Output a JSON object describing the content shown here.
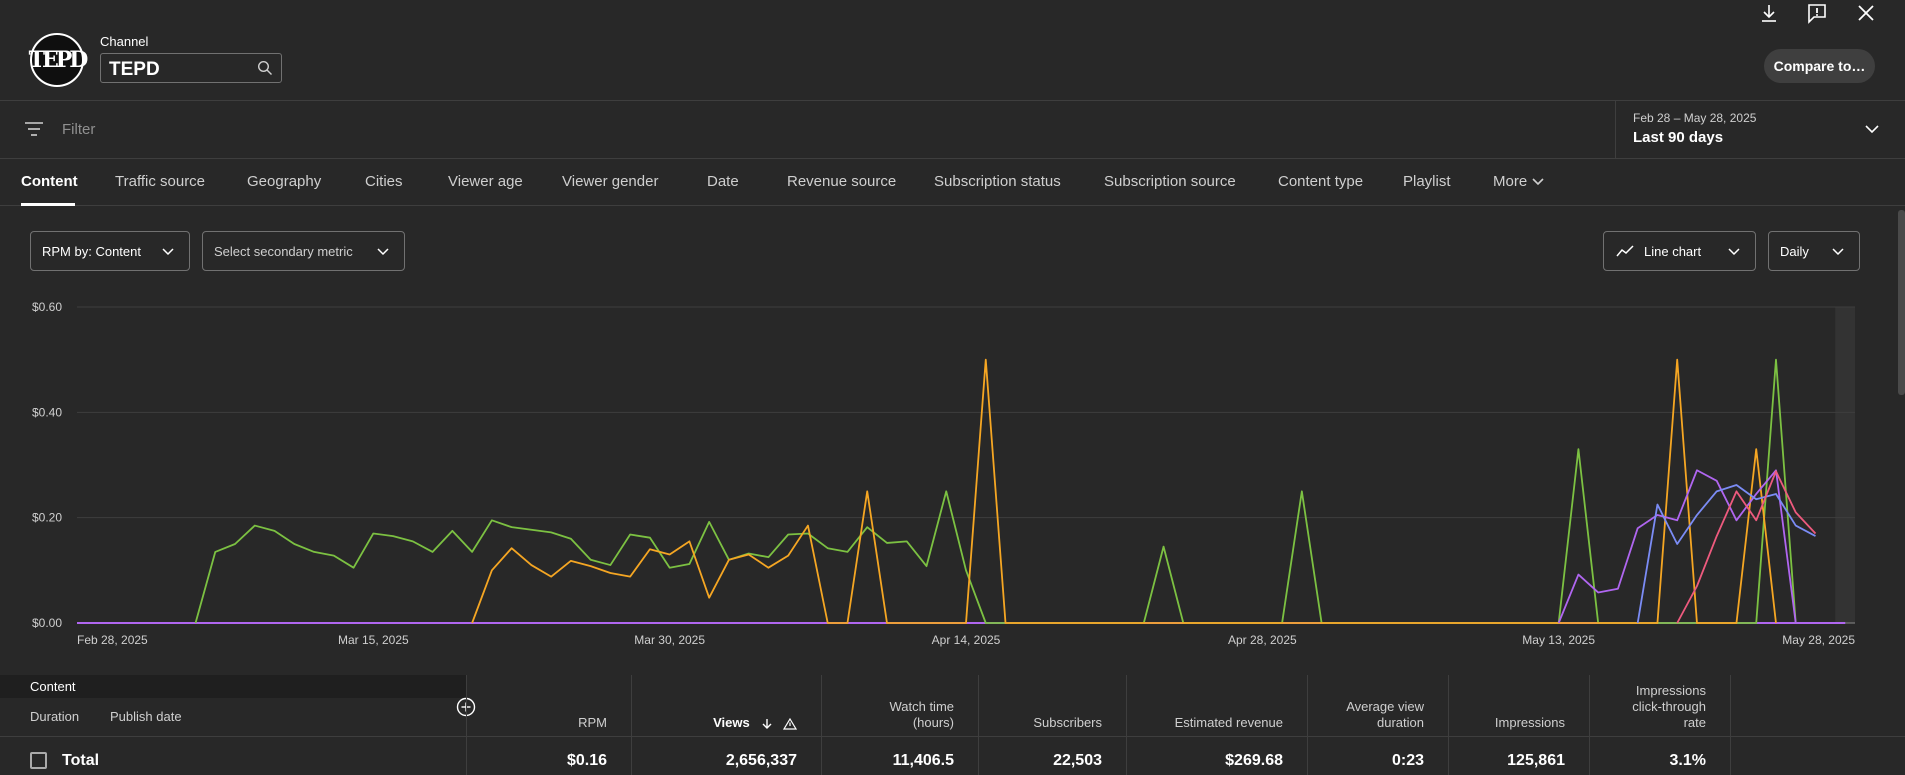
{
  "header": {
    "channel_label": "Channel",
    "channel_name": "TEPD",
    "logo_text": "TEPD",
    "compare_label": "Compare to…",
    "icons": [
      "download-icon",
      "feedback-icon",
      "close-icon",
      "search-icon"
    ]
  },
  "filter": {
    "placeholder": "Filter",
    "date_range": "Feb 28 – May 28, 2025",
    "date_preset": "Last 90 days"
  },
  "tabs": [
    {
      "label": "Content"
    },
    {
      "label": "Traffic source"
    },
    {
      "label": "Geography"
    },
    {
      "label": "Cities"
    },
    {
      "label": "Viewer age"
    },
    {
      "label": "Viewer gender"
    },
    {
      "label": "Date"
    },
    {
      "label": "Revenue source"
    },
    {
      "label": "Subscription status"
    },
    {
      "label": "Subscription source"
    },
    {
      "label": "Content type"
    },
    {
      "label": "Playlist"
    },
    {
      "label": "More"
    }
  ],
  "controls": {
    "primary_metric": "RPM by: Content",
    "secondary_metric": "Select secondary metric",
    "chart_type": "Line chart",
    "granularity": "Daily"
  },
  "chart_data": {
    "type": "line",
    "x_ticks": [
      "Feb 28, 2025",
      "Mar 15, 2025",
      "Mar 30, 2025",
      "Apr 14, 2025",
      "Apr 28, 2025",
      "May 13, 2025",
      "May 28, 2025"
    ],
    "y_ticks": [
      "$0.00",
      "$0.20",
      "$0.40",
      "$0.60"
    ],
    "ylim": [
      0,
      0.6
    ],
    "days": 90,
    "grid": true,
    "colors": {
      "green": "#7cc142",
      "orange": "#f5a623",
      "purple": "#b066f0",
      "blue": "#7b8cf5",
      "pink": "#ee5a7e"
    },
    "series": [
      {
        "color": "#7cc142",
        "points": [
          [
            6,
            0
          ],
          [
            7,
            0.135
          ],
          [
            8,
            0.15
          ],
          [
            9,
            0.185
          ],
          [
            10,
            0.175
          ],
          [
            11,
            0.15
          ],
          [
            12,
            0.135
          ],
          [
            13,
            0.128
          ],
          [
            14,
            0.105
          ],
          [
            15,
            0.17
          ],
          [
            16,
            0.165
          ],
          [
            17,
            0.155
          ],
          [
            18,
            0.135
          ],
          [
            19,
            0.175
          ],
          [
            20,
            0.135
          ],
          [
            21,
            0.195
          ],
          [
            22,
            0.182
          ],
          [
            23,
            0.177
          ],
          [
            24,
            0.172
          ],
          [
            25,
            0.16
          ],
          [
            26,
            0.12
          ],
          [
            27,
            0.11
          ],
          [
            28,
            0.168
          ],
          [
            29,
            0.162
          ],
          [
            30,
            0.105
          ],
          [
            31,
            0.112
          ],
          [
            32,
            0.192
          ],
          [
            33,
            0.12
          ],
          [
            34,
            0.132
          ],
          [
            35,
            0.125
          ],
          [
            36,
            0.168
          ],
          [
            37,
            0.17
          ],
          [
            38,
            0.142
          ],
          [
            39,
            0.135
          ],
          [
            40,
            0.182
          ],
          [
            41,
            0.152
          ],
          [
            42,
            0.155
          ],
          [
            43,
            0.108
          ],
          [
            44,
            0.25
          ],
          [
            45,
            0.1
          ],
          [
            46,
            0
          ],
          [
            54,
            0
          ],
          [
            55,
            0.145
          ],
          [
            56,
            0
          ],
          [
            61,
            0
          ],
          [
            62,
            0.25
          ],
          [
            63,
            0
          ],
          [
            75,
            0
          ],
          [
            76,
            0.33
          ],
          [
            77,
            0
          ],
          [
            85,
            0
          ],
          [
            86,
            0.5
          ],
          [
            87,
            0
          ]
        ]
      },
      {
        "color": "#f5a623",
        "points": [
          [
            20,
            0
          ],
          [
            21,
            0.1
          ],
          [
            22,
            0.142
          ],
          [
            23,
            0.11
          ],
          [
            24,
            0.088
          ],
          [
            25,
            0.118
          ],
          [
            26,
            0.108
          ],
          [
            27,
            0.095
          ],
          [
            28,
            0.088
          ],
          [
            29,
            0.14
          ],
          [
            30,
            0.13
          ],
          [
            31,
            0.155
          ],
          [
            32,
            0.048
          ],
          [
            33,
            0.12
          ],
          [
            34,
            0.13
          ],
          [
            35,
            0.105
          ],
          [
            36,
            0.128
          ],
          [
            37,
            0.185
          ],
          [
            38,
            0
          ],
          [
            39,
            0
          ],
          [
            40,
            0.25
          ],
          [
            41,
            0
          ],
          [
            45,
            0
          ],
          [
            46,
            0.5
          ],
          [
            47,
            0
          ],
          [
            80,
            0
          ],
          [
            81,
            0.5
          ],
          [
            82,
            0
          ],
          [
            84,
            0
          ],
          [
            85,
            0.33
          ],
          [
            86,
            0
          ]
        ]
      },
      {
        "color": "#b066f0",
        "points": [
          [
            75,
            0
          ],
          [
            76,
            0.092
          ],
          [
            77,
            0.058
          ],
          [
            78,
            0.065
          ],
          [
            79,
            0.18
          ],
          [
            80,
            0.205
          ],
          [
            81,
            0.195
          ],
          [
            82,
            0.29
          ],
          [
            83,
            0.27
          ],
          [
            84,
            0.195
          ],
          [
            85,
            0.245
          ],
          [
            86,
            0.29
          ],
          [
            87,
            0
          ]
        ]
      },
      {
        "color": "#7b8cf5",
        "points": [
          [
            79,
            0
          ],
          [
            80,
            0.225
          ],
          [
            81,
            0.15
          ],
          [
            82,
            0.205
          ],
          [
            83,
            0.25
          ],
          [
            84,
            0.262
          ],
          [
            85,
            0.235
          ],
          [
            86,
            0.245
          ],
          [
            87,
            0.185
          ],
          [
            88,
            0.165
          ]
        ]
      },
      {
        "color": "#ee5a7e",
        "points": [
          [
            81,
            0
          ],
          [
            82,
            0.07
          ],
          [
            83,
            0.165
          ],
          [
            84,
            0.25
          ],
          [
            85,
            0.195
          ],
          [
            86,
            0.288
          ],
          [
            87,
            0.21
          ],
          [
            88,
            0.17
          ]
        ]
      }
    ]
  },
  "table": {
    "section_label": "Content",
    "sub_headers": [
      "Duration",
      "Publish date"
    ],
    "columns": [
      {
        "label": "RPM"
      },
      {
        "label": "Views"
      },
      {
        "label": "Watch time (hours)"
      },
      {
        "label": "Subscribers"
      },
      {
        "label": "Estimated revenue"
      },
      {
        "label": "Average view duration"
      },
      {
        "label": "Impressions"
      },
      {
        "label": "Impressions click-through rate"
      }
    ],
    "total_label": "Total",
    "totals": [
      "$0.16",
      "2,656,337",
      "11,406.5",
      "22,503",
      "$269.68",
      "0:23",
      "125,861",
      "3.1%"
    ]
  }
}
